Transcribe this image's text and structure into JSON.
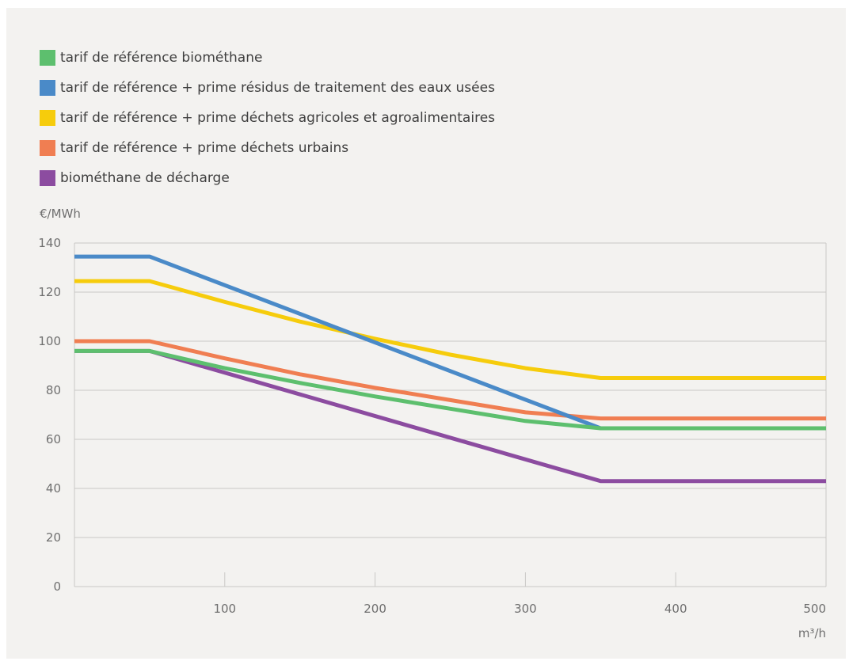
{
  "chart_data": {
    "type": "line",
    "ylabel": "€/MWh",
    "xlabel": "m³/h",
    "xlim": [
      0,
      500
    ],
    "ylim": [
      0,
      140
    ],
    "xticks": [
      100,
      200,
      300,
      400,
      500
    ],
    "yticks": [
      0,
      20,
      40,
      60,
      80,
      100,
      120,
      140
    ],
    "grid": "horizontal",
    "legend_position": "top-left",
    "series": [
      {
        "name": "tarif de référence biométhane",
        "color": "#5dbf6e",
        "points": [
          [
            0,
            96
          ],
          [
            50,
            96
          ],
          [
            100,
            89
          ],
          [
            150,
            83
          ],
          [
            200,
            77.5
          ],
          [
            250,
            72.5
          ],
          [
            300,
            67.5
          ],
          [
            350,
            64.5
          ],
          [
            500,
            64.5
          ]
        ]
      },
      {
        "name": "tarif de référence + prime résidus de traitement des eaux usées",
        "color": "#4a8ac8",
        "points": [
          [
            0,
            134.5
          ],
          [
            50,
            134.5
          ],
          [
            350,
            64.5
          ]
        ]
      },
      {
        "name": "tarif de référence + prime déchets agricoles et agroalimentaires",
        "color": "#f6cc0c",
        "points": [
          [
            0,
            124.5
          ],
          [
            50,
            124.5
          ],
          [
            100,
            116
          ],
          [
            150,
            108
          ],
          [
            200,
            101
          ],
          [
            250,
            94.5
          ],
          [
            300,
            89
          ],
          [
            350,
            85
          ],
          [
            500,
            85
          ]
        ]
      },
      {
        "name": "tarif de référence + prime déchets urbains",
        "color": "#f07e52",
        "points": [
          [
            0,
            100
          ],
          [
            50,
            100
          ],
          [
            100,
            93
          ],
          [
            150,
            86.5
          ],
          [
            200,
            81
          ],
          [
            250,
            76
          ],
          [
            300,
            71
          ],
          [
            350,
            68.5
          ],
          [
            500,
            68.5
          ]
        ]
      },
      {
        "name": "biométhane de décharge",
        "color": "#8c4ca0",
        "points": [
          [
            0,
            96
          ],
          [
            50,
            96
          ],
          [
            350,
            43
          ],
          [
            500,
            43
          ]
        ]
      }
    ]
  }
}
